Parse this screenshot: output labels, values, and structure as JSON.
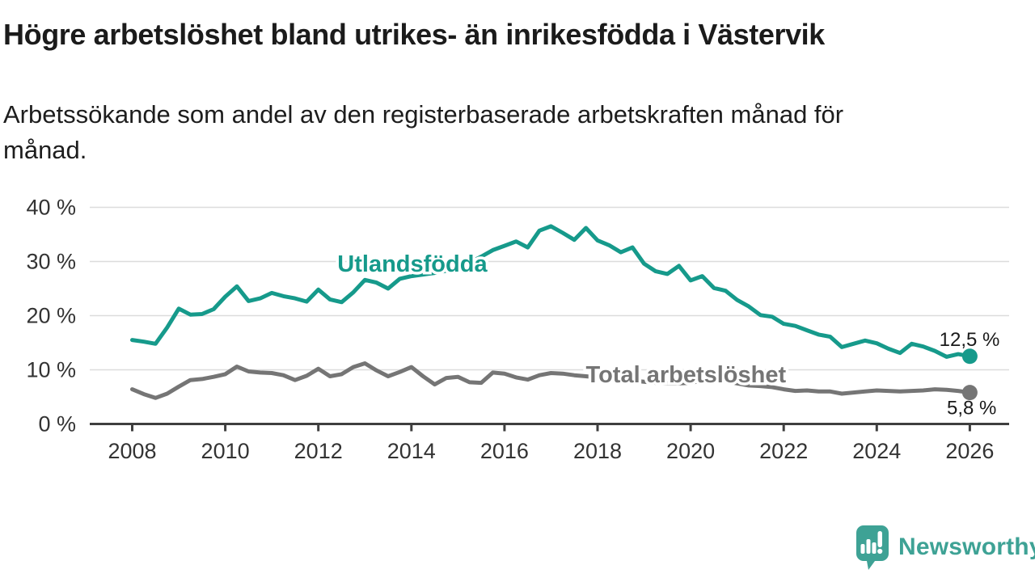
{
  "header": {
    "title": "Högre arbetslöshet bland utrikes- än inrikesfödda i Västervik",
    "subtitle": "Arbetssökande som andel av den registerbaserade arbetskraften månad för\nmånad."
  },
  "chart_data": {
    "type": "line",
    "title": "",
    "xlabel": "",
    "ylabel": "",
    "x_start": 2008,
    "x_step": 0.25,
    "xlim": [
      2008,
      2026
    ],
    "ylim": [
      0,
      42
    ],
    "grid": true,
    "x_ticks": [
      2008,
      2010,
      2012,
      2014,
      2016,
      2018,
      2020,
      2022,
      2024,
      2026
    ],
    "y_ticks": [
      0,
      10,
      20,
      30,
      40
    ],
    "y_tick_suffix": " %",
    "series": [
      {
        "name": "Utlandsfödda",
        "color": "#169a8b",
        "end_label": "12,5 %",
        "last_value": 12.5,
        "label_pos": {
          "year": 2014.02,
          "value": 29.6
        },
        "values": [
          15.5,
          15.2,
          14.8,
          17.8,
          21.3,
          20.2,
          20.3,
          21.2,
          23.5,
          25.4,
          22.7,
          23.2,
          24.2,
          23.6,
          23.2,
          22.6,
          24.8,
          23.0,
          22.5,
          24.3,
          26.6,
          26.1,
          25.0,
          26.8,
          27.3,
          27.6,
          27.9,
          28.3,
          29.0,
          29.8,
          30.9,
          32.1,
          32.9,
          33.7,
          32.6,
          35.7,
          36.5,
          35.3,
          34.0,
          36.2,
          33.9,
          33.0,
          31.7,
          32.6,
          29.6,
          28.2,
          27.7,
          29.2,
          26.5,
          27.3,
          25.1,
          24.6,
          22.9,
          21.7,
          20.1,
          19.8,
          18.5,
          18.1,
          17.3,
          16.5,
          16.1,
          14.2,
          14.8,
          15.4,
          14.9,
          13.9,
          13.1,
          14.8,
          14.3,
          13.5,
          12.4,
          12.9,
          12.5
        ]
      },
      {
        "name": "Total arbetslöshet",
        "color": "#757575",
        "end_label": "5,8 %",
        "last_value": 5.8,
        "label_pos": {
          "year": 2019.9,
          "value": 9.2
        },
        "values": [
          6.4,
          5.5,
          4.8,
          5.6,
          6.9,
          8.1,
          8.3,
          8.7,
          9.2,
          10.6,
          9.7,
          9.5,
          9.4,
          9.0,
          8.1,
          8.9,
          10.2,
          8.8,
          9.2,
          10.5,
          11.2,
          9.9,
          8.8,
          9.6,
          10.5,
          8.8,
          7.3,
          8.5,
          8.7,
          7.7,
          7.6,
          9.5,
          9.3,
          8.6,
          8.2,
          9.0,
          9.4,
          9.3,
          9.0,
          8.8,
          8.6,
          8.4,
          8.2,
          8.0,
          7.8,
          7.6,
          7.5,
          7.5,
          7.6,
          8.0,
          8.1,
          7.9,
          7.5,
          7.1,
          7.0,
          6.8,
          6.4,
          6.1,
          6.2,
          6.0,
          6.0,
          5.6,
          5.8,
          6.0,
          6.2,
          6.1,
          6.0,
          6.1,
          6.2,
          6.4,
          6.3,
          6.1,
          5.8
        ]
      }
    ]
  },
  "footer": {
    "brand": "Newsworthy"
  },
  "colors": {
    "accent_teal": "#169a8b",
    "line_gray": "#757575",
    "grid": "#dcdcdc",
    "axis": "#3e3e3e",
    "tick_label": "#333333",
    "value_label": "#1a1a1a",
    "logo": "#3ea295"
  }
}
